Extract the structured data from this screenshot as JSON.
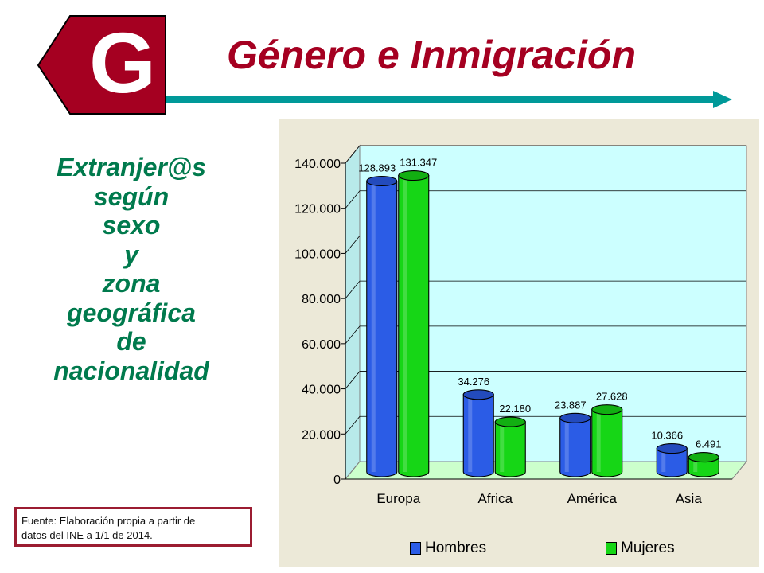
{
  "header": {
    "logo_letter": "G",
    "title": "Género e Inmigración"
  },
  "subtitle_lines": [
    "Extranjer@s",
    "según",
    "sexo",
    "y",
    "zona",
    "geográfica",
    "de",
    "nacionalidad"
  ],
  "source_note": {
    "line1": "Fuente: Elaboración propia a partir de",
    "line2": "datos del INE a 1/1 de 2014."
  },
  "colors": {
    "brand": "#a50021",
    "accent_arrow": "#009999",
    "subtitle": "#007a4d",
    "hombres": "#2b5ce6",
    "mujeres": "#16d616",
    "plot_background": "#ccffff",
    "floor": "#ccffcc",
    "panel": "#ece9d8"
  },
  "chart_data": {
    "type": "bar",
    "categories": [
      "Europa",
      "Africa",
      "América",
      "Asia"
    ],
    "series": [
      {
        "name": "Hombres",
        "values": [
          128893,
          34276,
          23887,
          10366
        ],
        "labels": [
          "128.893",
          "34.276",
          "23.887",
          "10.366"
        ]
      },
      {
        "name": "Mujeres",
        "values": [
          131347,
          22180,
          27628,
          6491
        ],
        "labels": [
          "131.347",
          "22.180",
          "27.628",
          "6.491"
        ]
      }
    ],
    "yticks": [
      0,
      20000,
      40000,
      60000,
      80000,
      100000,
      120000,
      140000
    ],
    "ytick_labels": [
      "0",
      "20.000",
      "40.000",
      "60.000",
      "80.000",
      "100.000",
      "120.000",
      "140.000"
    ],
    "ylim": [
      0,
      140000
    ],
    "grid": true,
    "legend_position": "bottom",
    "bar_style": "3d-cylinder"
  }
}
